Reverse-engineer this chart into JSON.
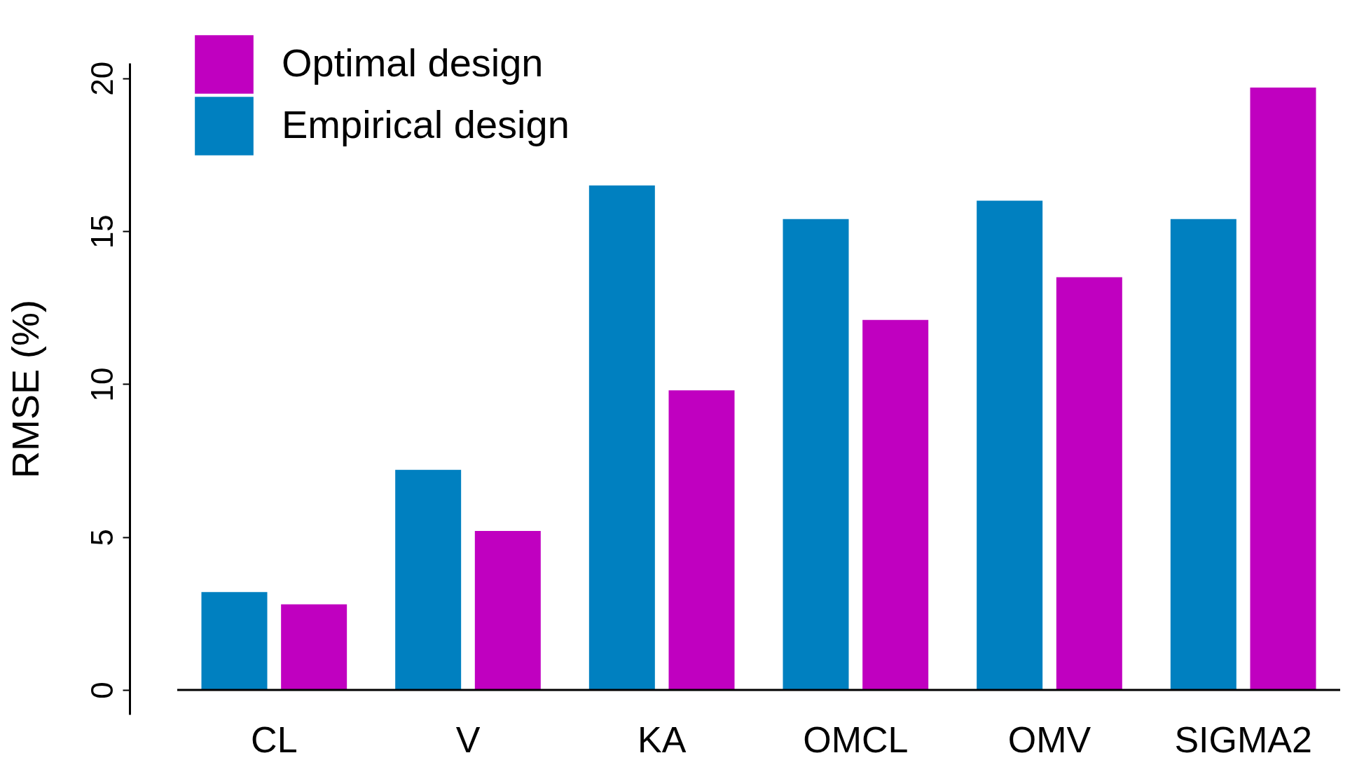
{
  "chart_data": {
    "type": "bar",
    "ylabel": "RMSE (%)",
    "categories": [
      "CL",
      "V",
      "KA",
      "OMCL",
      "OMV",
      "SIGMA2"
    ],
    "series": [
      {
        "name": "Empirical design",
        "color": "#0080c0",
        "values": [
          3.2,
          7.2,
          16.5,
          15.4,
          16.0,
          15.4
        ]
      },
      {
        "name": "Optimal design",
        "color": "#c000c0",
        "values": [
          2.8,
          5.2,
          9.8,
          12.1,
          13.5,
          19.7
        ]
      }
    ],
    "ylim": [
      -0.8,
      20.5
    ],
    "yticks": [
      0,
      5,
      10,
      15,
      20
    ],
    "grid": false,
    "legend": "top left"
  }
}
